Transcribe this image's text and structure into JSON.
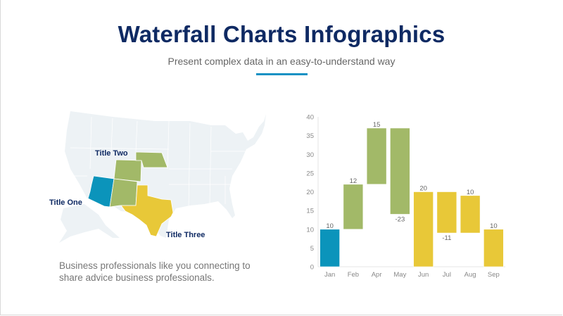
{
  "header": {
    "title": "Waterfall Charts Infographics",
    "subtitle": "Present complex data in an easy-to-understand way"
  },
  "map": {
    "labels": {
      "one": "Title One",
      "two": "Title Two",
      "three": "Title Three"
    },
    "colors": {
      "base": "#edf2f5",
      "one": "#0b94bb",
      "two": "#a2b968",
      "three": "#e8c838"
    }
  },
  "description": "Business professionals like you connecting to share advice business professionals.",
  "chart_data": {
    "type": "waterfall",
    "categories": [
      "Jan",
      "Feb",
      "Apr",
      "May",
      "Jun",
      "Jul",
      "Aug",
      "Sep"
    ],
    "bars": [
      {
        "label": "10",
        "start": 0,
        "end": 10,
        "color": "#0b94bb"
      },
      {
        "label": "12",
        "start": 10,
        "end": 22,
        "color": "#a2b968"
      },
      {
        "label": "15",
        "start": 22,
        "end": 37,
        "color": "#a2b968"
      },
      {
        "label": "-23",
        "start": 37,
        "end": 14,
        "color": "#a2b968"
      },
      {
        "label": "20",
        "start": 0,
        "end": 20,
        "color": "#e8c838"
      },
      {
        "label": "-11",
        "start": 20,
        "end": 9,
        "color": "#e8c838"
      },
      {
        "label": "10",
        "start": 9,
        "end": 19,
        "color": "#e8c838"
      },
      {
        "label": "10",
        "start": 0,
        "end": 10,
        "color": "#e8c838"
      }
    ],
    "ylim": [
      0,
      40
    ],
    "yticks": [
      "0",
      "5",
      "10",
      "15",
      "20",
      "25",
      "30",
      "35",
      "40"
    ],
    "grid": false,
    "legend": "none"
  }
}
